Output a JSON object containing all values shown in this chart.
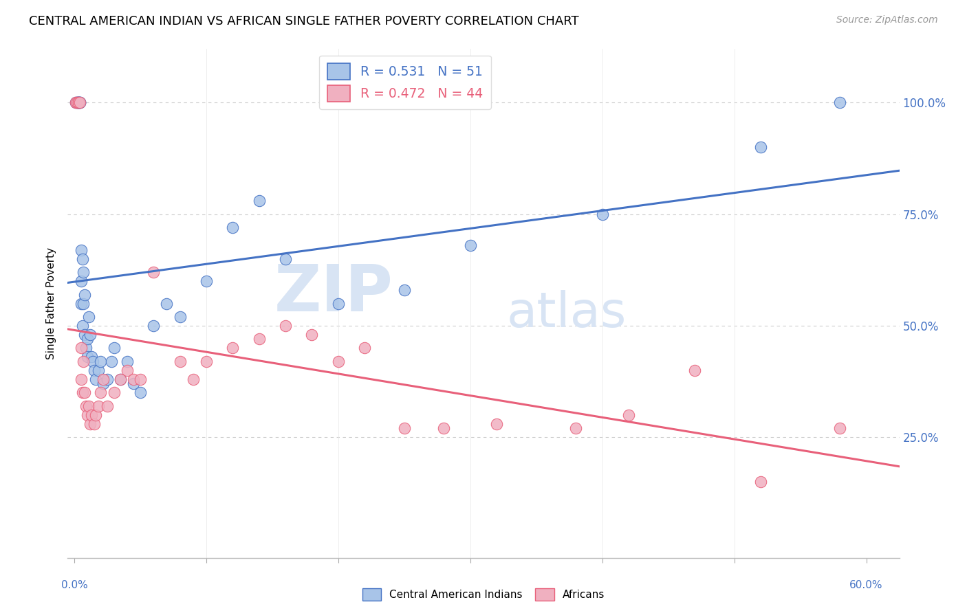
{
  "title": "CENTRAL AMERICAN INDIAN VS AFRICAN SINGLE FATHER POVERTY CORRELATION CHART",
  "source": "Source: ZipAtlas.com",
  "ylabel": "Single Father Poverty",
  "blue_line_color": "#4472c4",
  "pink_line_color": "#e8607a",
  "blue_scatter_color": "#a8c4e8",
  "pink_scatter_color": "#f0b0c0",
  "watermark_color": "#d8e4f4",
  "legend_blue_text": "R = 0.531   N = 51",
  "legend_pink_text": "R = 0.472   N = 44",
  "legend_blue_color": "#4472c4",
  "legend_pink_color": "#e8607a",
  "ytick_labels": [
    "25.0%",
    "50.0%",
    "75.0%",
    "100.0%"
  ],
  "ytick_color": "#4472c4",
  "xtick_left_label": "0.0%",
  "xtick_right_label": "60.0%",
  "xtick_color": "#4472c4",
  "grid_color": "#cccccc",
  "title_fontsize": 13,
  "source_fontsize": 10,
  "blue_x": [
    0.001,
    0.002,
    0.002,
    0.003,
    0.003,
    0.003,
    0.003,
    0.004,
    0.004,
    0.004,
    0.005,
    0.005,
    0.005,
    0.006,
    0.006,
    0.007,
    0.007,
    0.008,
    0.008,
    0.009,
    0.01,
    0.01,
    0.011,
    0.012,
    0.013,
    0.014,
    0.015,
    0.016,
    0.018,
    0.02,
    0.022,
    0.025,
    0.028,
    0.03,
    0.035,
    0.04,
    0.045,
    0.05,
    0.06,
    0.07,
    0.08,
    0.1,
    0.12,
    0.14,
    0.16,
    0.2,
    0.25,
    0.3,
    0.4,
    0.52,
    0.58
  ],
  "blue_y": [
    1.0,
    1.0,
    1.0,
    1.0,
    1.0,
    1.0,
    1.0,
    1.0,
    1.0,
    1.0,
    0.67,
    0.6,
    0.55,
    0.65,
    0.5,
    0.62,
    0.55,
    0.57,
    0.48,
    0.45,
    0.47,
    0.43,
    0.52,
    0.48,
    0.43,
    0.42,
    0.4,
    0.38,
    0.4,
    0.42,
    0.37,
    0.38,
    0.42,
    0.45,
    0.38,
    0.42,
    0.37,
    0.35,
    0.5,
    0.55,
    0.52,
    0.6,
    0.72,
    0.78,
    0.65,
    0.55,
    0.58,
    0.68,
    0.75,
    0.9,
    1.0
  ],
  "pink_x": [
    0.001,
    0.002,
    0.003,
    0.003,
    0.004,
    0.005,
    0.005,
    0.006,
    0.007,
    0.008,
    0.009,
    0.01,
    0.011,
    0.012,
    0.013,
    0.015,
    0.016,
    0.018,
    0.02,
    0.022,
    0.025,
    0.03,
    0.035,
    0.04,
    0.045,
    0.05,
    0.06,
    0.08,
    0.09,
    0.1,
    0.12,
    0.14,
    0.16,
    0.18,
    0.2,
    0.22,
    0.25,
    0.28,
    0.32,
    0.38,
    0.42,
    0.47,
    0.52,
    0.58
  ],
  "pink_y": [
    1.0,
    1.0,
    1.0,
    1.0,
    1.0,
    0.45,
    0.38,
    0.35,
    0.42,
    0.35,
    0.32,
    0.3,
    0.32,
    0.28,
    0.3,
    0.28,
    0.3,
    0.32,
    0.35,
    0.38,
    0.32,
    0.35,
    0.38,
    0.4,
    0.38,
    0.38,
    0.62,
    0.42,
    0.38,
    0.42,
    0.45,
    0.47,
    0.5,
    0.48,
    0.42,
    0.45,
    0.27,
    0.27,
    0.28,
    0.27,
    0.3,
    0.4,
    0.15,
    0.27
  ]
}
